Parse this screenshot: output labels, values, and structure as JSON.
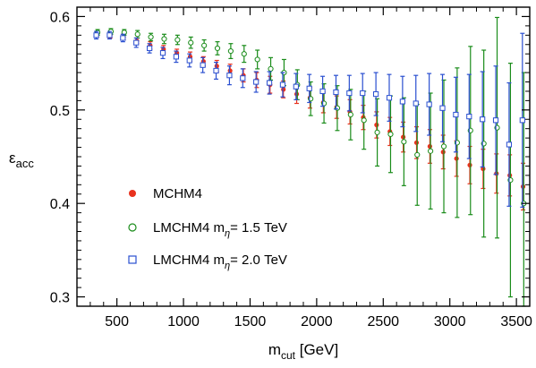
{
  "chart_data": {
    "type": "scatter",
    "xlabel": {
      "main": "m",
      "sub": "cut",
      "unit": " [GeV]"
    },
    "ylabel": {
      "main": "ε",
      "sub": "acc"
    },
    "xlim": [
      200,
      3600
    ],
    "ylim": [
      0.29,
      0.61
    ],
    "xticks": [
      500,
      1000,
      1500,
      2000,
      2500,
      3000,
      3500
    ],
    "yticks": [
      0.3,
      0.4,
      0.5,
      0.6
    ],
    "xtick_labels": [
      "500",
      "1000",
      "1500",
      "2000",
      "2500",
      "3000",
      "3500"
    ],
    "ytick_labels": [
      "0.3",
      "0.4",
      "0.5",
      "0.6"
    ],
    "grid": false,
    "legend_placement": "center-left",
    "series": [
      {
        "name": "MCHM4",
        "marker": "filled-circle",
        "color": "#e8321e",
        "x": [
          350,
          450,
          550,
          650,
          750,
          850,
          950,
          1050,
          1150,
          1250,
          1350,
          1450,
          1550,
          1650,
          1750,
          1850,
          1950,
          2050,
          2150,
          2250,
          2350,
          2450,
          2550,
          2650,
          2750,
          2850,
          2950,
          3050,
          3150,
          3250,
          3350,
          3450,
          3550
        ],
        "y": [
          0.581,
          0.58,
          0.578,
          0.574,
          0.569,
          0.565,
          0.561,
          0.557,
          0.552,
          0.547,
          0.542,
          0.537,
          0.532,
          0.527,
          0.522,
          0.517,
          0.513,
          0.508,
          0.503,
          0.498,
          0.492,
          0.484,
          0.477,
          0.471,
          0.465,
          0.461,
          0.455,
          0.448,
          0.441,
          0.437,
          0.432,
          0.43,
          0.418
        ],
        "err": [
          0.003,
          0.003,
          0.003,
          0.003,
          0.004,
          0.004,
          0.004,
          0.005,
          0.005,
          0.006,
          0.007,
          0.007,
          0.008,
          0.009,
          0.009,
          0.01,
          0.011,
          0.011,
          0.012,
          0.013,
          0.013,
          0.014,
          0.015,
          0.016,
          0.017,
          0.018,
          0.018,
          0.019,
          0.02,
          0.021,
          0.021,
          0.022,
          0.025
        ]
      },
      {
        "name_main": "LMCHM4  m",
        "name_sub": "η",
        "name_rest": "= 1.5 TeV",
        "marker": "open-circle",
        "color": "#1a8c1a",
        "x": [
          355,
          455,
          555,
          655,
          755,
          855,
          955,
          1055,
          1155,
          1255,
          1355,
          1455,
          1555,
          1655,
          1755,
          1855,
          1955,
          2055,
          2155,
          2255,
          2355,
          2455,
          2555,
          2655,
          2755,
          2855,
          2955,
          3055,
          3155,
          3255,
          3355,
          3455,
          3555
        ],
        "y": [
          0.583,
          0.584,
          0.583,
          0.581,
          0.578,
          0.576,
          0.575,
          0.572,
          0.569,
          0.566,
          0.563,
          0.56,
          0.554,
          0.544,
          0.54,
          0.527,
          0.512,
          0.507,
          0.502,
          0.495,
          0.489,
          0.476,
          0.474,
          0.466,
          0.452,
          0.456,
          0.461,
          0.465,
          0.478,
          0.464,
          0.481,
          0.425,
          0.4
        ],
        "err": [
          0.003,
          0.003,
          0.003,
          0.004,
          0.004,
          0.005,
          0.005,
          0.006,
          0.006,
          0.007,
          0.008,
          0.009,
          0.01,
          0.012,
          0.014,
          0.016,
          0.018,
          0.021,
          0.024,
          0.027,
          0.031,
          0.036,
          0.041,
          0.047,
          0.054,
          0.062,
          0.071,
          0.08,
          0.09,
          0.1,
          0.118,
          0.125,
          0.14
        ]
      },
      {
        "name_main": "LMCHM4  m",
        "name_sub": "η",
        "name_rest": "= 2.0 TeV",
        "marker": "open-square",
        "color": "#2a4fd0",
        "x": [
          345,
          445,
          545,
          645,
          745,
          845,
          945,
          1045,
          1145,
          1245,
          1345,
          1445,
          1545,
          1645,
          1745,
          1845,
          1945,
          2045,
          2145,
          2245,
          2345,
          2445,
          2545,
          2645,
          2745,
          2845,
          2945,
          3045,
          3145,
          3245,
          3345,
          3445,
          3545
        ],
        "y": [
          0.58,
          0.58,
          0.577,
          0.572,
          0.566,
          0.561,
          0.557,
          0.553,
          0.548,
          0.542,
          0.537,
          0.534,
          0.53,
          0.529,
          0.527,
          0.525,
          0.523,
          0.52,
          0.519,
          0.518,
          0.518,
          0.517,
          0.513,
          0.509,
          0.507,
          0.506,
          0.502,
          0.495,
          0.493,
          0.49,
          0.489,
          0.463,
          0.489
        ],
        "err": [
          0.004,
          0.004,
          0.004,
          0.005,
          0.005,
          0.006,
          0.006,
          0.007,
          0.008,
          0.009,
          0.01,
          0.01,
          0.011,
          0.012,
          0.013,
          0.014,
          0.015,
          0.016,
          0.018,
          0.019,
          0.021,
          0.023,
          0.025,
          0.027,
          0.03,
          0.033,
          0.036,
          0.04,
          0.045,
          0.051,
          0.058,
          0.066,
          0.093
        ]
      }
    ]
  }
}
